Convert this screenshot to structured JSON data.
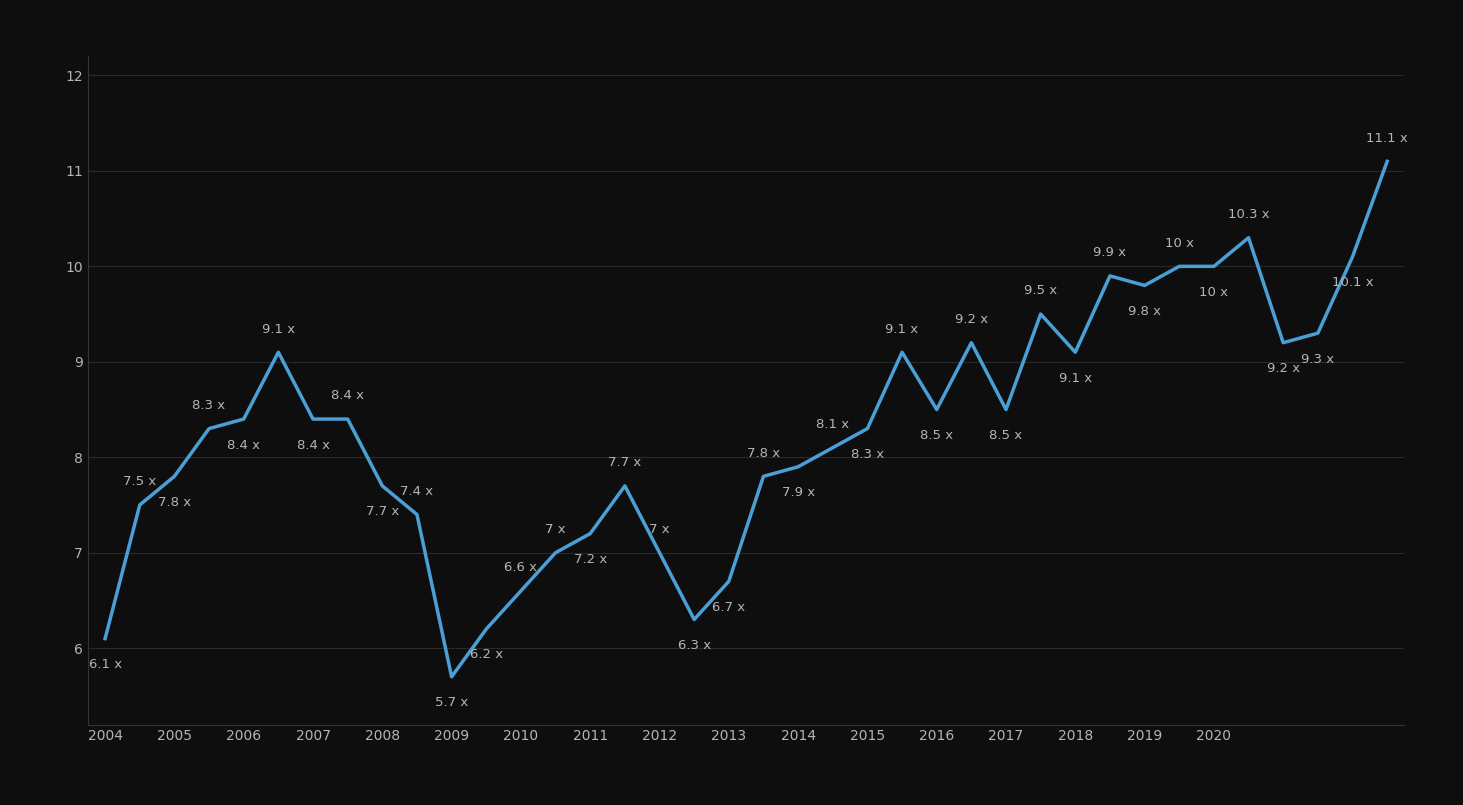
{
  "chart_data": {
    "type": "line",
    "categories": [
      "2004",
      null,
      "2005",
      null,
      "2006",
      null,
      "2007",
      null,
      "2008",
      null,
      "2009",
      null,
      "2010",
      null,
      "2011",
      null,
      "2012",
      null,
      "2013",
      null,
      "2014",
      null,
      "2015",
      null,
      "2016",
      null,
      "2017",
      null,
      "2018",
      null,
      "2019",
      null,
      "2020",
      null,
      null,
      null,
      null,
      null
    ],
    "values": [
      6.1,
      7.5,
      7.8,
      8.3,
      8.4,
      9.1,
      8.4,
      8.4,
      7.7,
      7.4,
      5.7,
      6.2,
      6.6,
      7,
      7.2,
      7.7,
      7,
      6.3,
      6.7,
      7.8,
      7.9,
      8.1,
      8.3,
      9.1,
      8.5,
      9.2,
      8.5,
      9.5,
      9.1,
      9.9,
      9.8,
      10,
      10,
      10.3,
      9.2,
      9.3,
      10.1,
      11.1
    ],
    "value_labels": [
      "6.1 x",
      "7.5 x",
      "7.8 x",
      "8.3 x",
      "8.4 x",
      "9.1 x",
      "8.4 x",
      "8.4 x",
      "7.7 x",
      "7.4 x",
      "5.7 x",
      "6.2 x",
      "6.6 x",
      "7 x",
      "7.2 x",
      "7.7 x",
      "7 x",
      "6.3 x",
      "6.7 x",
      "7.8 x",
      "7.9 x",
      "8.1 x",
      "8.3 x",
      "9.1 x",
      "8.5 x",
      "9.2 x",
      "8.5 x",
      "9.5 x",
      "9.1 x",
      "9.9 x",
      "9.8 x",
      "10 x",
      "10 x",
      "10.3 x",
      "9.2 x",
      "9.3 x",
      "10.1 x",
      "11.1 x"
    ],
    "data_labels": true,
    "color": "#4a9fd5",
    "ylim": [
      5.2,
      12.2
    ],
    "yticks": [
      6,
      7,
      8,
      9,
      10,
      11,
      12
    ],
    "grid": true
  }
}
